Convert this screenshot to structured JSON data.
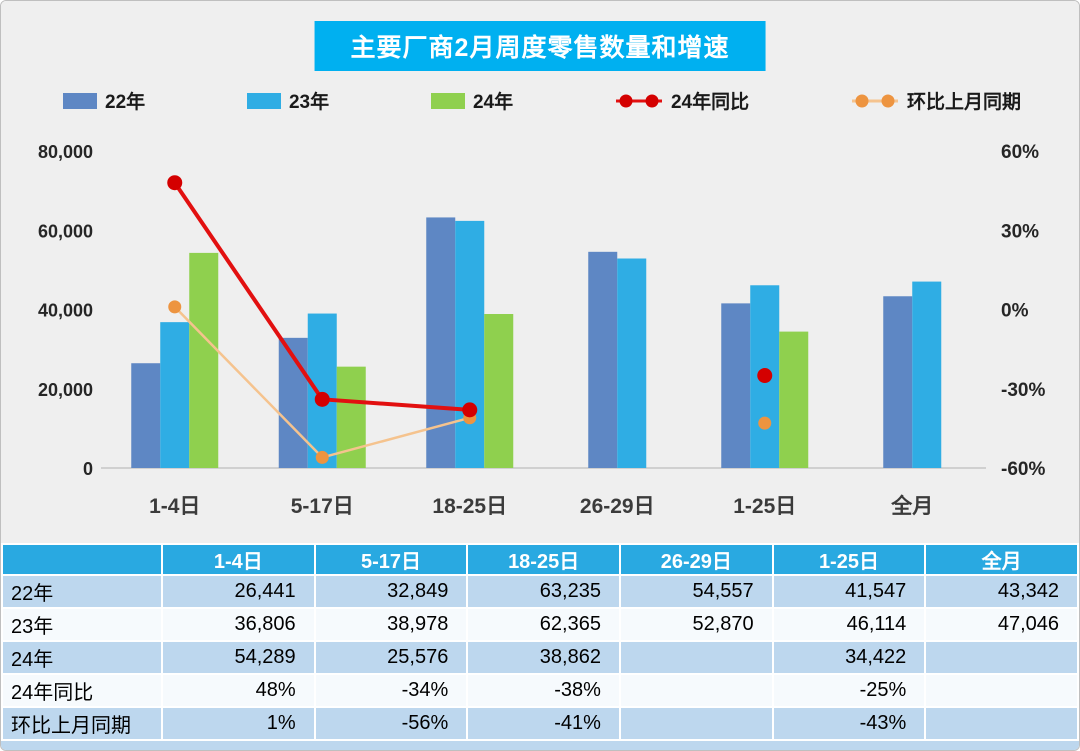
{
  "title": "主要厂商2月周度零售数量和增速",
  "legend": [
    {
      "label": "22年",
      "type": "bar",
      "color": "#5E87C4"
    },
    {
      "label": "23年",
      "type": "bar",
      "color": "#2FADE4"
    },
    {
      "label": "24年",
      "type": "bar",
      "color": "#8FD04E"
    },
    {
      "label": "24年同比",
      "type": "line",
      "color": "#E21010",
      "dot_color": "#D40000"
    },
    {
      "label": "环比上月同期",
      "type": "line",
      "color": "#F5C38E",
      "dot_color": "#ED9440"
    }
  ],
  "chart_data": {
    "type": "bar+line",
    "title": "主要厂商2月周度零售数量和增速",
    "categories": [
      "1-4日",
      "5-17日",
      "18-25日",
      "26-29日",
      "1-25日",
      "全月"
    ],
    "bar_series": [
      {
        "name": "22年",
        "color": "#5E87C4",
        "values": [
          26441,
          32849,
          63235,
          54557,
          41547,
          43342
        ]
      },
      {
        "name": "23年",
        "color": "#2FADE4",
        "values": [
          36806,
          38978,
          62365,
          52870,
          46114,
          47046
        ]
      },
      {
        "name": "24年",
        "color": "#8FD04E",
        "values": [
          54289,
          25576,
          38862,
          null,
          34422,
          null
        ]
      }
    ],
    "line_series": [
      {
        "name": "环比上月同期",
        "color": "#F5C38E",
        "dot_color": "#ED9440",
        "values_pct": [
          1,
          -56,
          -41,
          null,
          -43,
          null
        ],
        "connect": [
          0,
          1,
          2
        ],
        "line_width": 2.5,
        "dot_radius": 6.5
      },
      {
        "name": "24年同比",
        "color": "#E21010",
        "dot_color": "#D40000",
        "values_pct": [
          48,
          -34,
          -38,
          null,
          -25,
          null
        ],
        "connect": [
          0,
          1,
          2
        ],
        "line_width": 4,
        "dot_radius": 7.5
      }
    ],
    "left_axis": {
      "min": 0,
      "max": 80000,
      "ticks": [
        "80,000",
        "60,000",
        "40,000",
        "20,000",
        "0"
      ]
    },
    "right_axis": {
      "min": -60,
      "max": 60,
      "ticks": [
        "60%",
        "30%",
        "0%",
        "-30%",
        "-60%"
      ]
    },
    "grid": false,
    "legend_position": "top"
  },
  "table": {
    "header": [
      "",
      "1-4日",
      "5-17日",
      "18-25日",
      "26-29日",
      "1-25日",
      "全月"
    ],
    "rows": [
      {
        "label": "22年",
        "cells": [
          "26,441",
          "32,849",
          "63,235",
          "54,557",
          "41,547",
          "43,342"
        ]
      },
      {
        "label": "23年",
        "cells": [
          "36,806",
          "38,978",
          "62,365",
          "52,870",
          "46,114",
          "47,046"
        ]
      },
      {
        "label": "24年",
        "cells": [
          "54,289",
          "25,576",
          "38,862",
          "",
          "34,422",
          ""
        ]
      },
      {
        "label": "24年同比",
        "cells": [
          "48%",
          "-34%",
          "-38%",
          "",
          "-25%",
          ""
        ]
      },
      {
        "label": "环比上月同期",
        "cells": [
          "1%",
          "-56%",
          "-41%",
          "",
          "-43%",
          ""
        ]
      }
    ]
  }
}
